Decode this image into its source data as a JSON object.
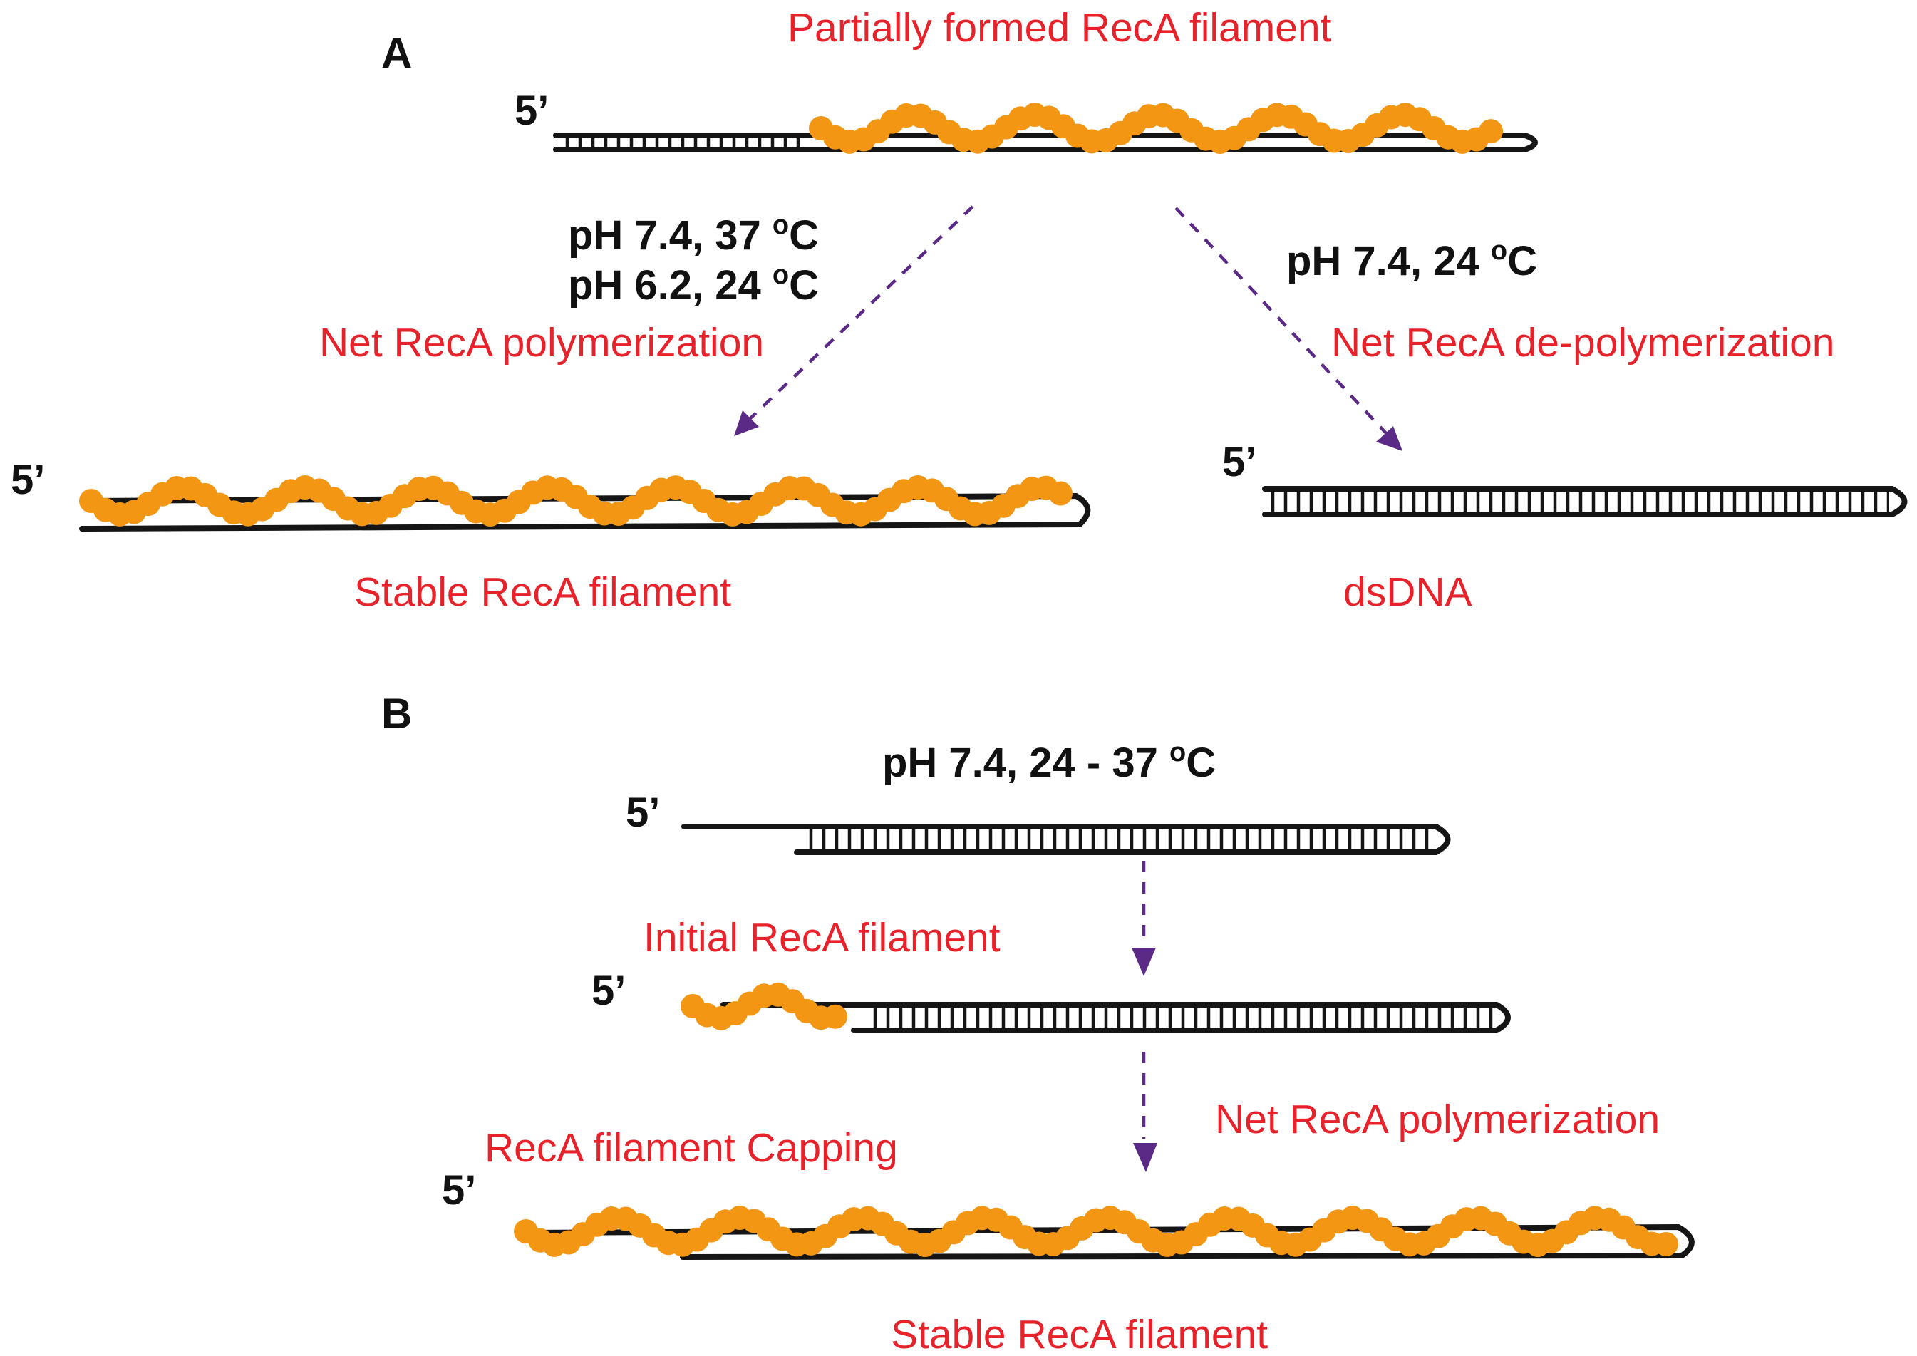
{
  "panels": {
    "a": "A",
    "b": "B"
  },
  "labels": {
    "partially_formed": "Partially formed RecA filament",
    "cond_a_left_1_main": "pH 7.4, 37 ",
    "cond_a_left_1_sup": "o",
    "cond_a_left_1_unit": "C",
    "cond_a_left_2_main": "pH 6.2, 24 ",
    "cond_a_left_2_sup": "o",
    "cond_a_left_2_unit": "C",
    "cond_a_right_main": "pH 7.4, 24 ",
    "cond_a_right_sup": "o",
    "cond_a_right_unit": "C",
    "net_poly_a": "Net RecA polymerization",
    "net_depoly": "Net RecA de-polymerization",
    "stable_a": "Stable RecA filament",
    "dsdna": "dsDNA",
    "cond_b_main": "pH 7.4, 24 - 37 ",
    "cond_b_sup": "o",
    "cond_b_unit": "C",
    "initial": "Initial RecA filament",
    "net_poly_b": "Net RecA polymerization",
    "capping": "RecA filament Capping",
    "stable_b": "Stable RecA filament",
    "five_prime": "5’"
  },
  "colors": {
    "label_red": "#e8222b",
    "recA_bead": "#f29613",
    "arrow_purple": "#5b2a86",
    "dna_black": "#151515"
  }
}
